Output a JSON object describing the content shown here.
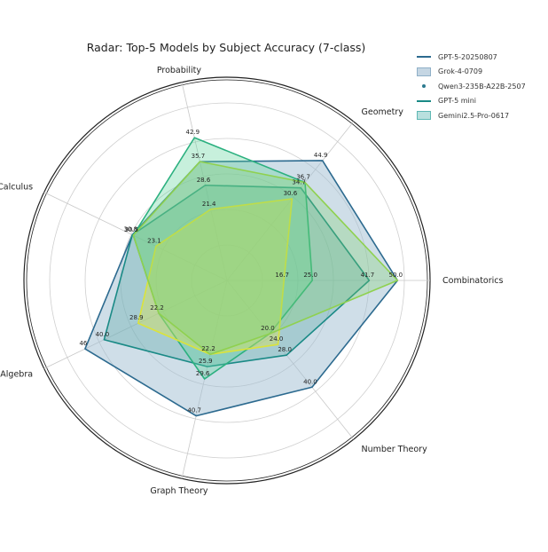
{
  "chart_data": {
    "type": "radar",
    "title": "Radar: Top-5 Models by Subject Accuracy (7-class)",
    "axes": [
      "Combinatorics",
      "Geometry",
      "Probability",
      "Calculus",
      "Algebra",
      "Graph Theory",
      "Number Theory"
    ],
    "rmax": 52,
    "grid": true,
    "legend_position": "top-right",
    "series": [
      {
        "name": "GPT-5-20250807",
        "values": [
          50.0,
          44.9,
          35.7,
          30.8,
          46.2,
          40.7,
          40.0
        ],
        "value_labels": [
          "",
          "44.9",
          "35.7",
          "30.8",
          "46",
          "40.7",
          "40.0"
        ],
        "color": "#2c6a8f",
        "fill": "#9fbdd1",
        "fill_opacity": 0.5
      },
      {
        "name": "Grok-4-0709",
        "values": [
          41.7,
          34.7,
          28.6,
          30.8,
          40.0,
          25.9,
          28.0
        ],
        "value_labels": [
          "41.7",
          "34.7",
          "28.6",
          "",
          "40.0",
          "25.9",
          "28.0"
        ],
        "color": "#1a8a86",
        "fill": "#5aa8a6",
        "fill_opacity": 0.35
      },
      {
        "name": "Qwen3-235B-A22B-2507",
        "values": [
          25.0,
          36.7,
          42.9,
          30.5,
          22.2,
          29.6,
          20.0
        ],
        "value_labels": [
          "25.0",
          "36.7",
          "42.9",
          "30.5",
          "22.2",
          "29.6",
          "20.0"
        ],
        "color": "#2bb07f",
        "fill": "#5fd49a",
        "fill_opacity": 0.35
      },
      {
        "name": "GPT-5 mini",
        "values": [
          16.7,
          30.6,
          21.4,
          23.1,
          28.9,
          22.2,
          24.0
        ],
        "value_labels": [
          "16.7",
          "30.6",
          "21.4",
          "23.1",
          "28.9",
          "22.2",
          "24.0"
        ],
        "color": "#dbe33a",
        "fill": "#d5e25a",
        "fill_opacity": 0.45
      },
      {
        "name": "Gemini2.5-Pro-0617",
        "values": [
          50.0,
          36.7,
          35.7,
          30.5,
          22.2,
          22.2,
          20.0
        ],
        "value_labels": [
          "50.0",
          "",
          "",
          "",
          "",
          "",
          ""
        ],
        "color": "#8fd14f",
        "fill": "#7fcf6a",
        "fill_opacity": 0.3
      }
    ],
    "legend": [
      {
        "label": "GPT-5-20250807",
        "style": "line",
        "color": "#2c6a8f"
      },
      {
        "label": "Grok-4-0709",
        "style": "patch",
        "color": "#8fb0c8",
        "fill": "#c5d6e3"
      },
      {
        "label": "Qwen3-235B-A22B-2507",
        "style": "dot",
        "color": "#2c7a8f"
      },
      {
        "label": "GPT-5 mini",
        "style": "line",
        "color": "#1a8a86"
      },
      {
        "label": "Gemini2.5-Pro-0617",
        "style": "patch",
        "color": "#5fb8b4",
        "fill": "#b9e0de"
      }
    ]
  }
}
